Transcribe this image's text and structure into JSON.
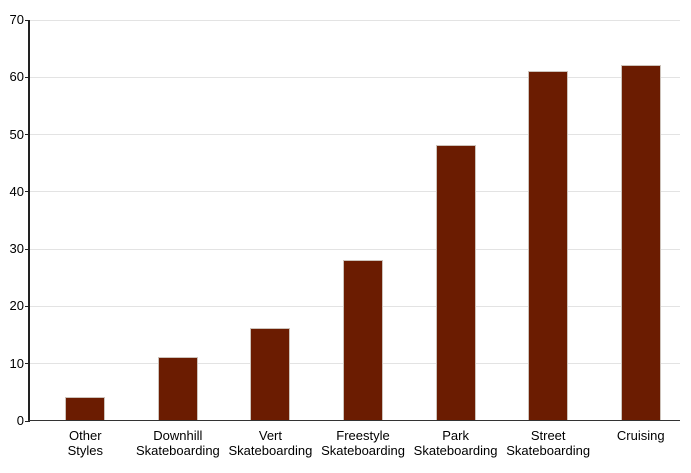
{
  "chart_data": {
    "type": "bar",
    "title": "",
    "xlabel": "",
    "ylabel": "",
    "categories": [
      "Other Styles",
      "Downhill Skateboarding",
      "Vert Skateboarding",
      "Freestyle Skateboarding",
      "Park Skateboarding",
      "Street Skateboarding",
      "Cruising"
    ],
    "values": [
      4,
      11,
      16,
      28,
      48,
      61,
      62
    ],
    "ylim": [
      0,
      70
    ],
    "yticks": [
      0,
      10,
      20,
      30,
      40,
      50,
      60,
      70
    ],
    "grid": true,
    "legend": false,
    "colors": {
      "bar_fill": "#6b1c01",
      "bar_border": "#cdc3bb",
      "gridline": "#e3e3e3",
      "y_axis": "#222222",
      "x_axis": "#333333",
      "tick": "#222222",
      "label_text": "#000000",
      "background": "#ffffff"
    }
  }
}
